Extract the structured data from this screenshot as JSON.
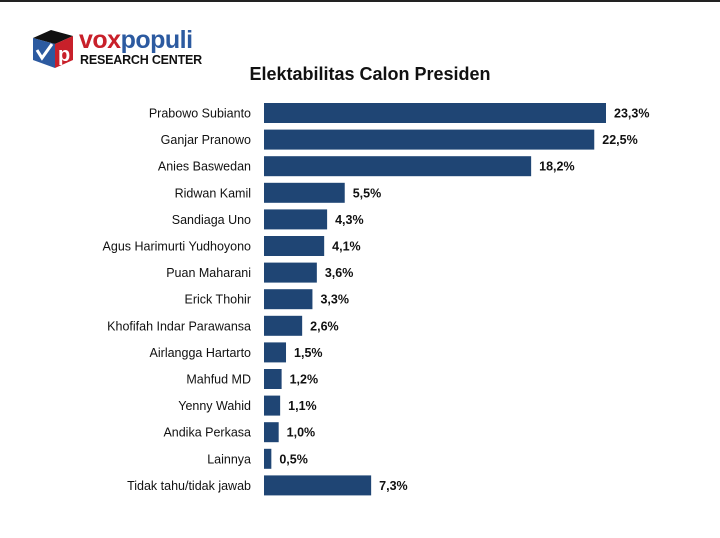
{
  "logo": {
    "brand_part1": "vox",
    "brand_part2": "populi",
    "subtitle": "RESEARCH CENTER"
  },
  "chart_data": {
    "type": "bar",
    "orientation": "horizontal",
    "title": "Elektabilitas Calon Presiden",
    "categories": [
      "Prabowo Subianto",
      "Ganjar Pranowo",
      "Anies Baswedan",
      "Ridwan Kamil",
      "Sandiaga Uno",
      "Agus Harimurti Yudhoyono",
      "Puan Maharani",
      "Erick Thohir",
      "Khofifah Indar Parawansa",
      "Airlangga Hartarto",
      "Mahfud MD",
      "Yenny Wahid",
      "Andika Perkasa",
      "Lainnya",
      "Tidak tahu/tidak jawab"
    ],
    "values": [
      23.3,
      22.5,
      18.2,
      5.5,
      4.3,
      4.1,
      3.6,
      3.3,
      2.6,
      1.5,
      1.2,
      1.1,
      1.0,
      0.5,
      7.3
    ],
    "data_labels": [
      "23,3%",
      "22,5%",
      "18,2%",
      "5,5%",
      "4,3%",
      "4,1%",
      "3,6%",
      "3,3%",
      "2,6%",
      "1,5%",
      "1,2%",
      "1,1%",
      "1,0%",
      "0,5%",
      "7,3%"
    ],
    "bar_color": "#1f4574",
    "grid": false,
    "legend": "none",
    "xlabel": "",
    "ylabel": ""
  }
}
